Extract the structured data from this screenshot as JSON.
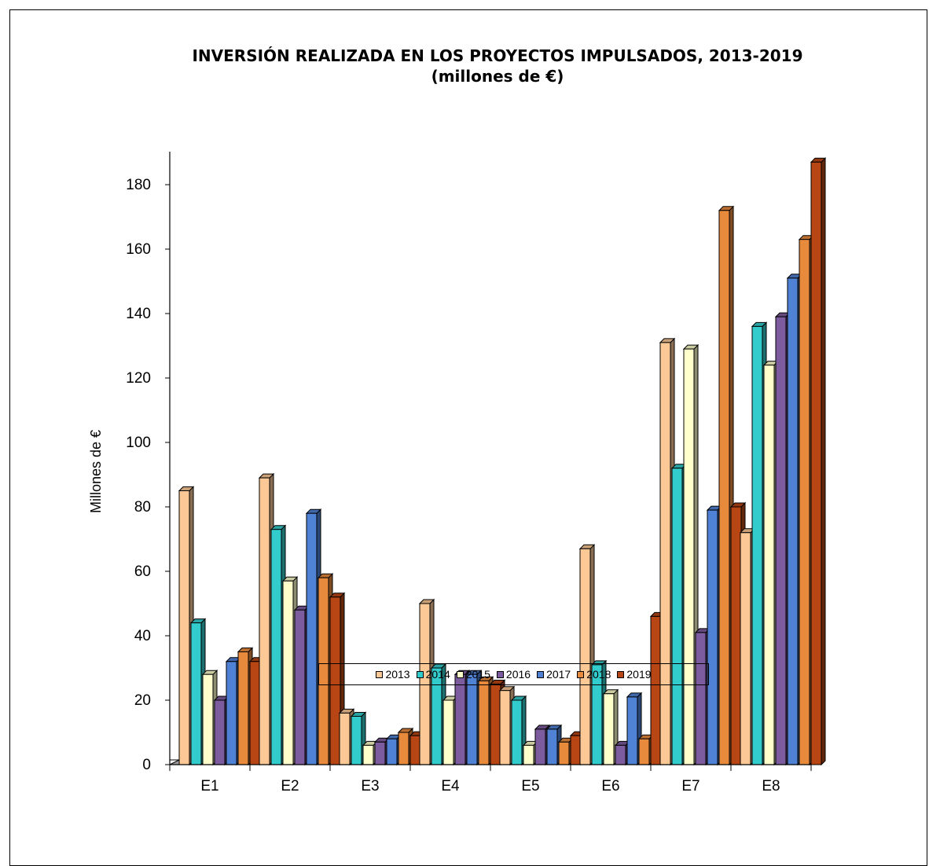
{
  "chart_data": {
    "type": "bar",
    "title": "INVERSIÓN REALIZADA EN LOS PROYECTOS IMPULSADOS, 2013-2019",
    "subtitle": "(millones de €)",
    "xlabel": "",
    "ylabel": "Millones de €",
    "ylim": [
      0,
      190
    ],
    "yticks": [
      0,
      20,
      40,
      60,
      80,
      100,
      120,
      140,
      160,
      180
    ],
    "categories": [
      "E1",
      "E2",
      "E3",
      "E4",
      "E5",
      "E6",
      "E7",
      "E8"
    ],
    "legend_position": "bottom",
    "grid": false,
    "series": [
      {
        "name": "2013",
        "color": "#FBC896",
        "values": [
          85,
          89,
          16,
          50,
          23,
          67,
          131,
          72
        ]
      },
      {
        "name": "2014",
        "color": "#33CCCC",
        "values": [
          44,
          73,
          15,
          30,
          20,
          31,
          92,
          136
        ]
      },
      {
        "name": "2015",
        "color": "#FFFFCC",
        "values": [
          28,
          57,
          6,
          20,
          6,
          22,
          129,
          124
        ]
      },
      {
        "name": "2016",
        "color": "#7C5B9E",
        "values": [
          20,
          48,
          7,
          28,
          11,
          6,
          41,
          139
        ]
      },
      {
        "name": "2017",
        "color": "#4F81D5",
        "values": [
          32,
          78,
          8,
          28,
          11,
          21,
          79,
          151
        ]
      },
      {
        "name": "2018",
        "color": "#E88A3C",
        "values": [
          35,
          58,
          10,
          26,
          7,
          8,
          172,
          163
        ]
      },
      {
        "name": "2019",
        "color": "#B84614",
        "values": [
          32,
          52,
          9,
          25,
          9,
          46,
          80,
          187
        ]
      }
    ]
  }
}
